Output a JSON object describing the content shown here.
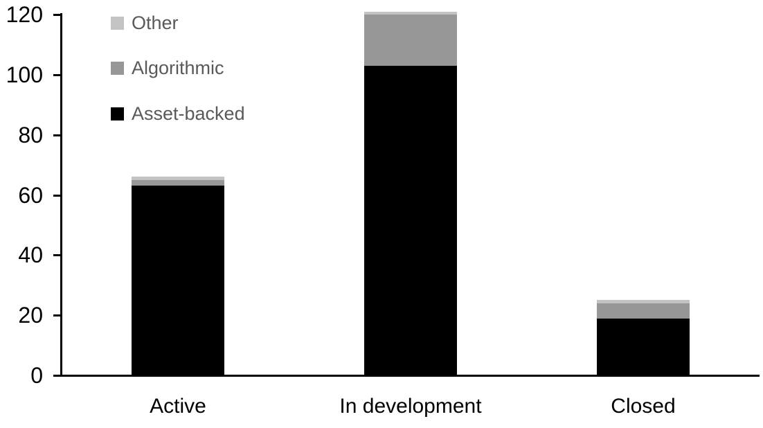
{
  "chart_data": {
    "type": "bar",
    "stacked": true,
    "title": "",
    "xlabel": "",
    "ylabel": "",
    "categories": [
      "Active",
      "In development",
      "Closed"
    ],
    "series": [
      {
        "name": "Asset-backed",
        "color": "#000000",
        "values": [
          63,
          103,
          19
        ]
      },
      {
        "name": "Algorithmic",
        "color": "#979797",
        "values": [
          2,
          17,
          5
        ]
      },
      {
        "name": "Other",
        "color": "#c3c3c3",
        "values": [
          1,
          1,
          1
        ]
      }
    ],
    "legend_order": [
      "Other",
      "Algorithmic",
      "Asset-backed"
    ],
    "legend_position": "top-left",
    "ylim": [
      0,
      120
    ],
    "yticks": [
      0,
      20,
      40,
      60,
      80,
      100,
      120
    ],
    "grid": false
  },
  "style": {
    "axis_color": "#000000",
    "tick_label_color": "#000000",
    "legend_text_color": "#595959",
    "background": "#ffffff"
  }
}
